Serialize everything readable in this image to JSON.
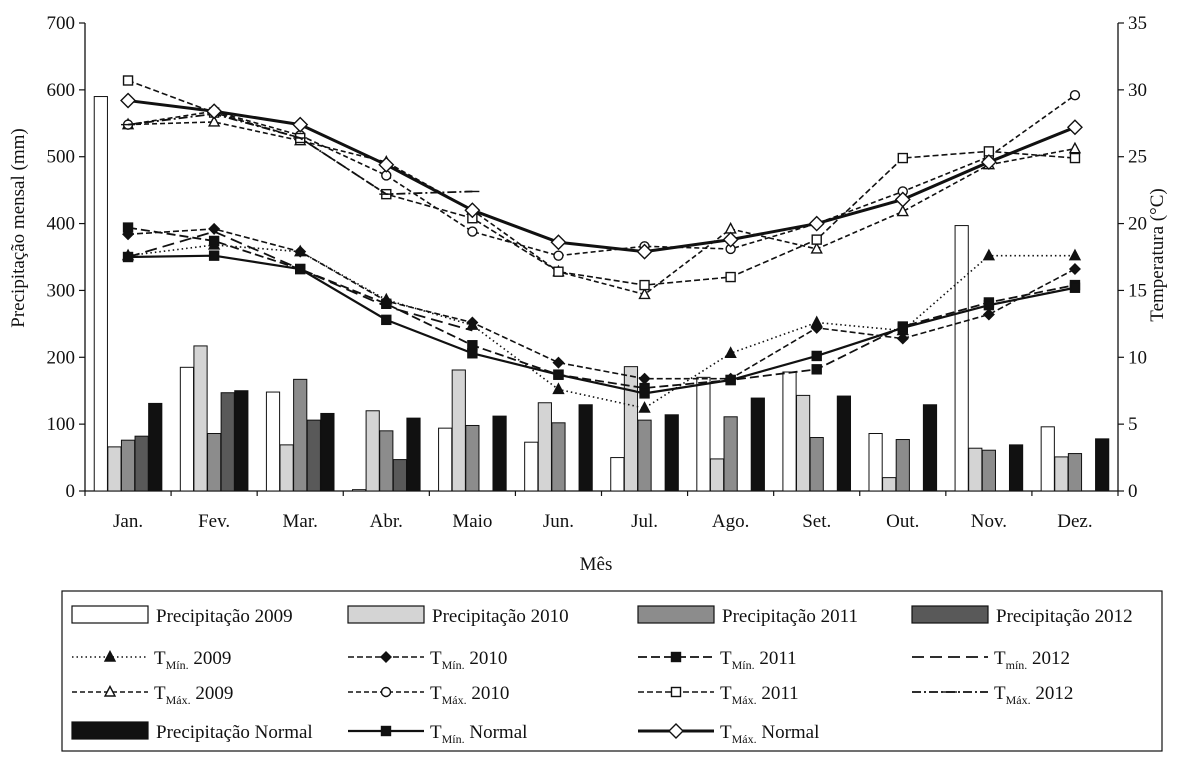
{
  "chart_data": {
    "type": "bar+line",
    "xlabel": "Mês",
    "ylabel_left": "Precipitação mensal (mm)",
    "ylabel_right": "Temperatura (°C)",
    "ylim_left": [
      0,
      700
    ],
    "ylim_right": [
      0,
      35
    ],
    "yticks_left": [
      0,
      100,
      200,
      300,
      400,
      500,
      600,
      700
    ],
    "yticks_right": [
      0,
      5,
      10,
      15,
      20,
      25,
      30,
      35
    ],
    "categories": [
      "Jan.",
      "Fev.",
      "Mar.",
      "Abr.",
      "Maio",
      "Jun.",
      "Jul.",
      "Ago.",
      "Set.",
      "Out.",
      "Nov.",
      "Dez."
    ],
    "grid": false,
    "legend_position": "bottom",
    "bar_series": [
      {
        "name": "Precipitação 2009",
        "color": "#ffffff",
        "values": [
          590,
          185,
          148,
          2,
          94,
          73,
          50,
          170,
          178,
          86,
          397,
          96
        ]
      },
      {
        "name": "Precipitação 2010",
        "color": "#d4d4d4",
        "values": [
          66,
          217,
          69,
          120,
          181,
          132,
          186,
          48,
          143,
          20,
          64,
          51
        ]
      },
      {
        "name": "Precipitação 2011",
        "color": "#8c8c8c",
        "values": [
          76,
          86,
          167,
          90,
          98,
          102,
          106,
          111,
          80,
          77,
          61,
          56
        ]
      },
      {
        "name": "Precipitação 2012",
        "color": "#595959",
        "values": [
          82,
          147,
          106,
          47,
          null,
          null,
          null,
          null,
          null,
          null,
          null,
          null
        ]
      },
      {
        "name": "Precipitação Normal",
        "color": "#111111",
        "values": [
          131,
          150,
          116,
          109,
          112,
          129,
          114,
          139,
          142,
          129,
          69,
          78
        ]
      }
    ],
    "line_series": [
      {
        "name": "Min. 2009",
        "sub": "Mín.",
        "label": "2009",
        "dash": "1.5,3",
        "width": 1.6,
        "marker": "triangle-filled",
        "values": [
          17.6,
          18.4,
          17.9,
          14.3,
          12.4,
          7.6,
          6.2,
          10.3,
          12.6,
          12.0,
          17.6,
          17.6
        ]
      },
      {
        "name": "Min. 2010",
        "sub": "Mín.",
        "label": "2010",
        "dash": "6,3",
        "width": 1.6,
        "marker": "diamond-filled",
        "values": [
          19.2,
          19.6,
          17.9,
          14.2,
          12.6,
          9.6,
          8.4,
          8.4,
          12.2,
          11.4,
          13.2,
          16.6
        ]
      },
      {
        "name": "Min. 2011",
        "sub": "Mín.",
        "label": "2011",
        "dash": "9,4",
        "width": 1.8,
        "marker": "square-filled",
        "values": [
          19.7,
          18.7,
          16.6,
          14.0,
          10.9,
          8.7,
          7.7,
          8.3,
          9.1,
          12.3,
          14.1,
          15.4
        ]
      },
      {
        "name": "min. 2012",
        "sub": "mín.",
        "label": "2012",
        "dash": "12,6",
        "width": 1.8,
        "marker": "none",
        "values": [
          17.5,
          19.4,
          16.6,
          13.8,
          12.0,
          null,
          null,
          null,
          null,
          null,
          null,
          null
        ]
      },
      {
        "name": "Máx. 2009",
        "sub": "Máx.",
        "label": "2009",
        "dash": "5,3",
        "width": 1.6,
        "marker": "triangle-open",
        "values": [
          27.4,
          27.6,
          26.2,
          24.6,
          21.0,
          16.4,
          14.7,
          19.6,
          18.1,
          20.9,
          24.4,
          25.6
        ]
      },
      {
        "name": "Máx. 2010",
        "sub": "Máx.",
        "label": "2010",
        "dash": "5,3",
        "width": 1.6,
        "marker": "circle-open",
        "values": [
          27.4,
          28.4,
          26.6,
          23.6,
          19.4,
          17.6,
          18.3,
          18.1,
          20.0,
          22.4,
          25.0,
          29.6
        ]
      },
      {
        "name": "Máx. 2011",
        "sub": "Máx.",
        "label": "2011",
        "dash": "6,3",
        "width": 1.6,
        "marker": "square-open",
        "values": [
          30.7,
          28.3,
          26.4,
          22.2,
          20.4,
          16.4,
          15.4,
          16.0,
          18.8,
          24.9,
          25.4,
          24.9
        ]
      },
      {
        "name": "Máx. 2012",
        "sub": "Máx.",
        "label": "2012",
        "dash": "9,3,2,3",
        "width": 1.8,
        "marker": "dash",
        "values": [
          27.4,
          28.2,
          26.4,
          22.2,
          22.4,
          null,
          null,
          null,
          null,
          null,
          null,
          null
        ]
      },
      {
        "name": "Min. Normal",
        "sub": "Mín.",
        "label": "Normal",
        "dash": "",
        "width": 2.2,
        "marker": "square-filled",
        "values": [
          17.5,
          17.6,
          16.6,
          12.8,
          10.3,
          8.7,
          7.3,
          8.3,
          10.1,
          12.2,
          13.9,
          15.2
        ]
      },
      {
        "name": "Máx. Normal",
        "sub": "Máx.",
        "label": "Normal",
        "dash": "",
        "width": 3.0,
        "marker": "diamond-open",
        "values": [
          29.2,
          28.4,
          27.4,
          24.4,
          21.0,
          18.6,
          17.9,
          18.8,
          20.0,
          21.8,
          24.6,
          27.2
        ]
      }
    ]
  },
  "legend_prefix": "T"
}
